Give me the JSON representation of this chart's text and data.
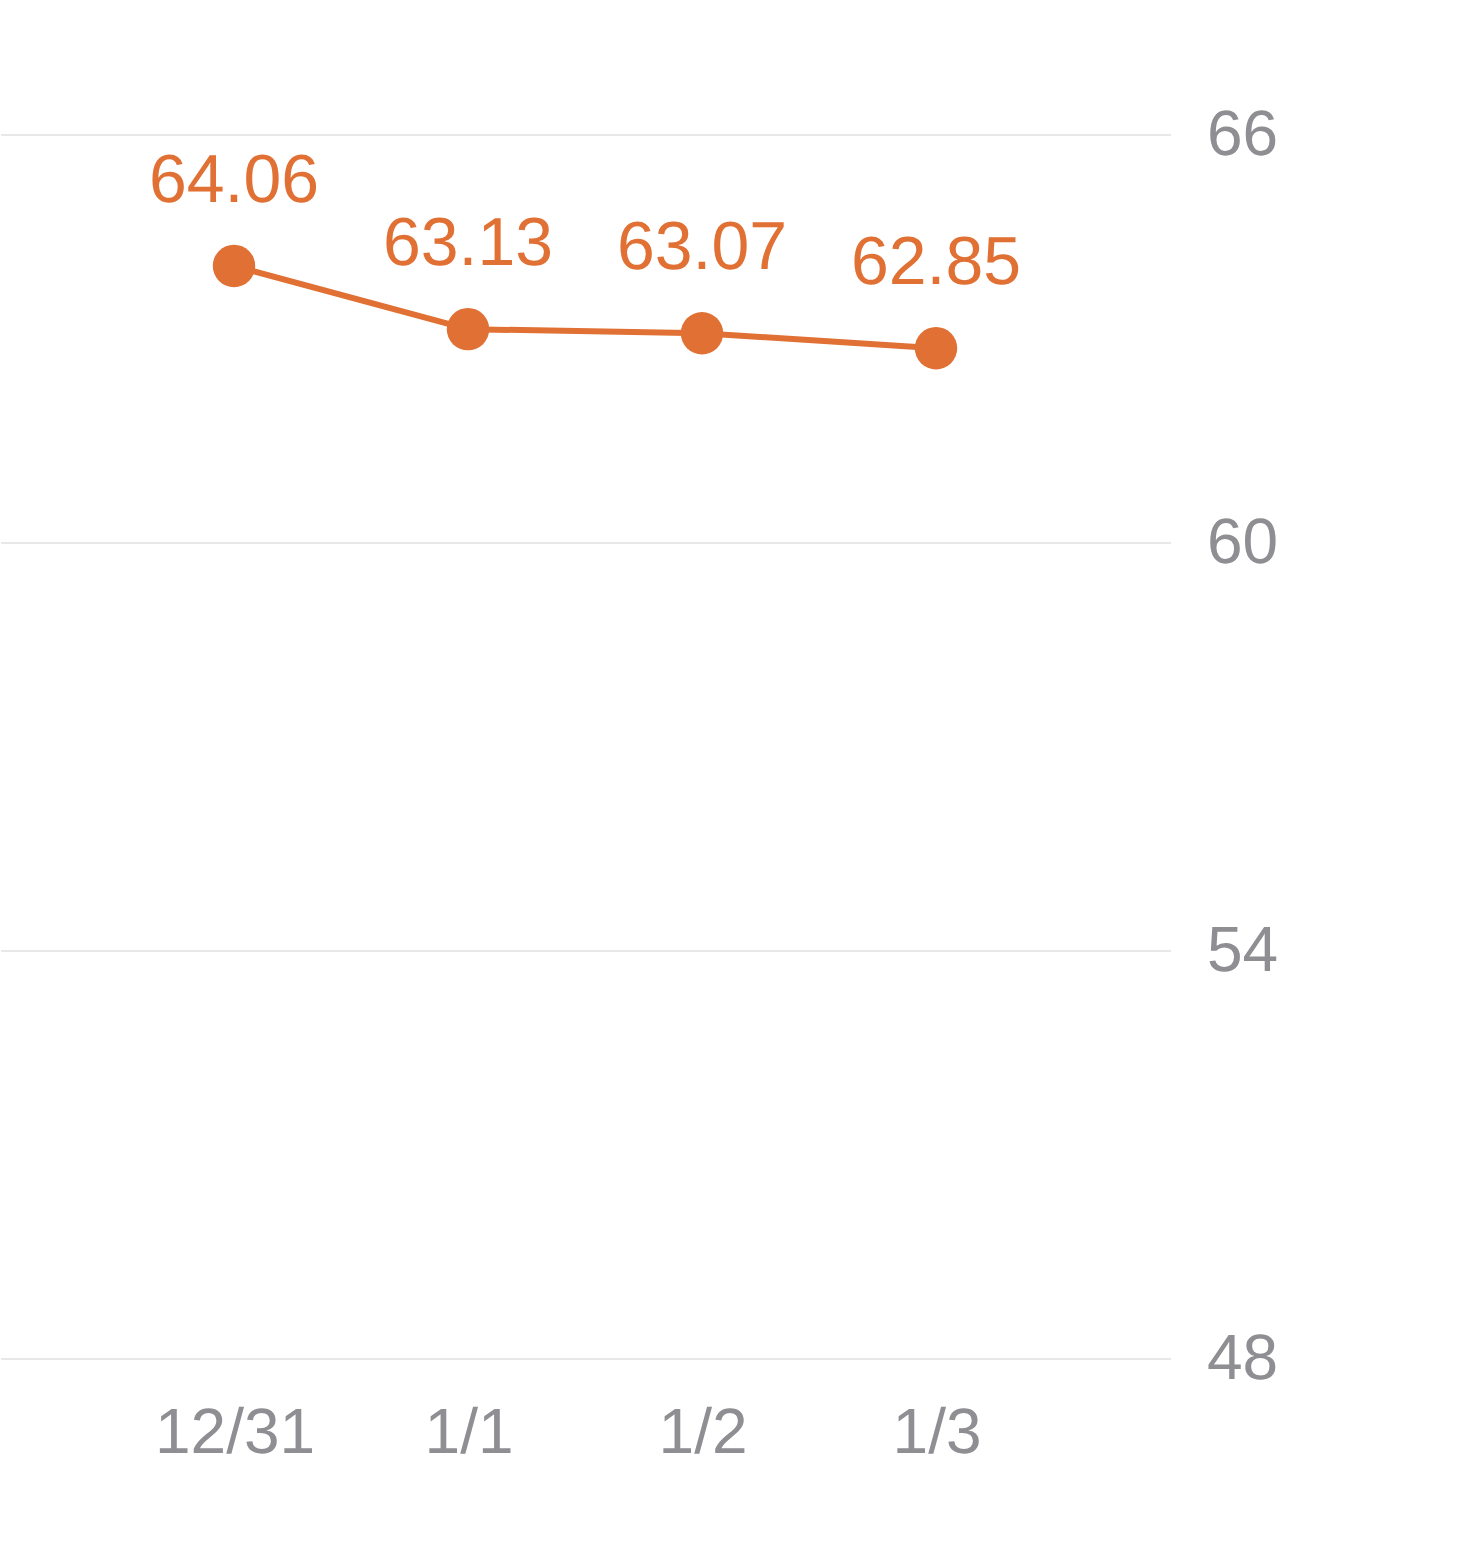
{
  "chart_data": {
    "type": "line",
    "categories": [
      "12/31",
      "1/1",
      "1/2",
      "1/3"
    ],
    "series": [
      {
        "color": "#e07033",
        "values": [
          64.06,
          63.13,
          63.07,
          62.85
        ]
      }
    ],
    "ylim": [
      48,
      66
    ],
    "yticks": [
      48,
      54,
      60,
      66
    ],
    "grid": "y",
    "data_labels": true,
    "marker": "circle",
    "line_style": "solid"
  }
}
